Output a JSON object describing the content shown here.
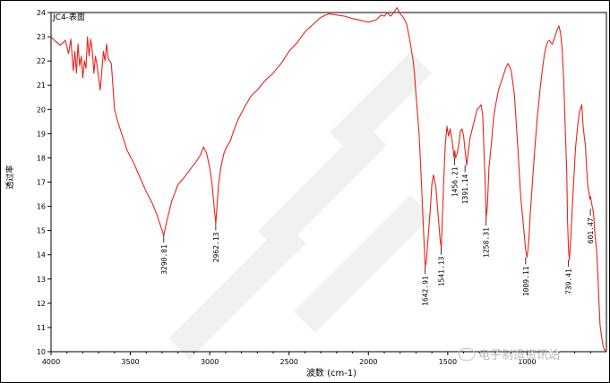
{
  "chart_data": {
    "type": "line",
    "title": "JC4-表面",
    "xlabel": "波数 (cm-1)",
    "ylabel": "透过率",
    "xlim": [
      4000,
      500
    ],
    "ylim": [
      10,
      24
    ],
    "x_ticks": [
      "4000",
      "3500",
      "3000",
      "2500",
      "2000",
      "1500",
      "1000"
    ],
    "y_ticks": [
      "10",
      "11",
      "12",
      "13",
      "14",
      "15",
      "16",
      "17",
      "18",
      "19",
      "20",
      "21",
      "22",
      "23",
      "24"
    ],
    "line_color": "#e8231a",
    "series": [
      {
        "x": [
          4000,
          3970,
          3940,
          3910,
          3890,
          3875,
          3860,
          3850,
          3840,
          3830,
          3820,
          3810,
          3800,
          3790,
          3780,
          3770,
          3760,
          3750,
          3740,
          3730,
          3720,
          3710,
          3700,
          3690,
          3680,
          3670,
          3660,
          3650,
          3640,
          3620,
          3600,
          3580,
          3550,
          3520,
          3480,
          3440,
          3400,
          3360,
          3330,
          3310,
          3290,
          3270,
          3240,
          3200,
          3160,
          3120,
          3090,
          3060,
          3040,
          3020,
          3000,
          2985,
          2970,
          2962,
          2955,
          2945,
          2930,
          2910,
          2890,
          2870,
          2850,
          2820,
          2780,
          2740,
          2700,
          2650,
          2600,
          2550,
          2500,
          2450,
          2400,
          2350,
          2300,
          2250,
          2200,
          2150,
          2100,
          2050,
          2000,
          1950,
          1920,
          1900,
          1880,
          1860,
          1840,
          1820,
          1800,
          1780,
          1760,
          1740,
          1720,
          1710,
          1700,
          1690,
          1680,
          1670,
          1660,
          1650,
          1642,
          1635,
          1625,
          1610,
          1600,
          1590,
          1575,
          1560,
          1548,
          1541,
          1535,
          1525,
          1515,
          1505,
          1495,
          1485,
          1470,
          1460,
          1456,
          1450,
          1440,
          1430,
          1420,
          1410,
          1400,
          1391,
          1380,
          1370,
          1360,
          1345,
          1330,
          1315,
          1300,
          1290,
          1280,
          1270,
          1262,
          1258,
          1250,
          1240,
          1225,
          1210,
          1195,
          1180,
          1165,
          1150,
          1135,
          1120,
          1100,
          1080,
          1060,
          1040,
          1020,
          1009,
          1000,
          990,
          980,
          965,
          950,
          935,
          920,
          905,
          890,
          880,
          870,
          860,
          850,
          840,
          830,
          820,
          810,
          800,
          790,
          780,
          770,
          760,
          750,
          745,
          739,
          733,
          725,
          710,
          695,
          680,
          670,
          660,
          655,
          648,
          640,
          632,
          626,
          620,
          615,
          610,
          605,
          600,
          595,
          590,
          585,
          580,
          575,
          570,
          565,
          560,
          555,
          550,
          545,
          540,
          530,
          520,
          510,
          500
        ],
        "y": [
          23.0,
          22.8,
          22.65,
          22.85,
          22.3,
          22.9,
          21.6,
          22.4,
          21.5,
          22.7,
          21.8,
          22.2,
          21.3,
          22.0,
          21.7,
          23.0,
          22.2,
          22.9,
          22.4,
          21.5,
          22.2,
          21.8,
          21.3,
          20.8,
          21.6,
          22.4,
          22.0,
          22.7,
          22.1,
          21.9,
          20.0,
          19.5,
          18.9,
          18.3,
          17.8,
          17.2,
          16.6,
          16.1,
          15.6,
          15.2,
          14.8,
          15.4,
          16.2,
          16.9,
          17.2,
          17.55,
          17.8,
          18.1,
          18.45,
          18.2,
          17.6,
          16.9,
          15.8,
          15.3,
          15.9,
          16.9,
          17.6,
          18.2,
          18.5,
          18.7,
          19.1,
          19.6,
          20.1,
          20.55,
          20.8,
          21.2,
          21.5,
          21.9,
          22.4,
          22.75,
          23.2,
          23.5,
          23.8,
          23.95,
          23.9,
          23.85,
          23.75,
          23.68,
          23.6,
          23.7,
          23.9,
          23.85,
          24.0,
          23.85,
          24.0,
          24.2,
          23.95,
          23.8,
          23.55,
          22.9,
          22.1,
          21.5,
          20.6,
          19.8,
          18.9,
          17.6,
          16.1,
          14.6,
          13.5,
          13.7,
          14.6,
          15.9,
          16.9,
          17.3,
          16.8,
          15.6,
          14.6,
          14.3,
          15.3,
          17.1,
          18.6,
          19.3,
          18.9,
          19.2,
          18.6,
          18.0,
          18.3,
          18.0,
          18.2,
          18.6,
          19.1,
          19.2,
          18.9,
          18.3,
          17.7,
          18.3,
          18.8,
          19.2,
          19.6,
          20.0,
          20.1,
          20.2,
          19.8,
          18.0,
          16.6,
          15.5,
          16.0,
          17.6,
          18.6,
          19.7,
          20.3,
          20.8,
          21.1,
          21.4,
          21.7,
          21.9,
          21.6,
          20.6,
          18.6,
          16.4,
          15.0,
          14.2,
          13.9,
          14.5,
          15.7,
          17.1,
          18.5,
          19.7,
          20.7,
          21.6,
          22.3,
          22.6,
          22.8,
          22.85,
          22.75,
          22.7,
          22.9,
          23.1,
          23.3,
          23.45,
          23.2,
          22.6,
          21.3,
          19.4,
          17.4,
          15.4,
          14.2,
          13.8,
          14.6,
          16.6,
          18.4,
          19.4,
          19.9,
          20.1,
          20.2,
          19.4,
          18.9,
          18.5,
          17.7,
          17.1,
          16.7,
          16.6,
          16.3,
          16.4,
          16.2,
          16.0,
          15.9,
          15.6,
          15.1,
          14.7,
          14.4,
          14.0,
          13.3,
          12.6,
          11.8,
          11.1,
          10.6,
          10.2,
          10.05,
          10.0
        ]
      }
    ],
    "annotations": [
      {
        "label": "3290.81",
        "x": 3290,
        "y": 14.8
      },
      {
        "label": "2962.13",
        "x": 2962,
        "y": 15.3
      },
      {
        "label": "1642.91",
        "x": 1642,
        "y": 13.5
      },
      {
        "label": "1541.13",
        "x": 1541,
        "y": 14.3
      },
      {
        "label": "1456.21",
        "x": 1456,
        "y": 18.0
      },
      {
        "label": "1391.14",
        "x": 1391,
        "y": 17.7
      },
      {
        "label": "1258.31",
        "x": 1258,
        "y": 15.5
      },
      {
        "label": "1009.11",
        "x": 1009,
        "y": 13.9
      },
      {
        "label": "739.41",
        "x": 739,
        "y": 13.8
      },
      {
        "label": "601.47",
        "x": 601,
        "y": 15.9
      }
    ]
  },
  "watermark": {
    "text": "电子制造资讯站",
    "icon": "wechat-icon"
  }
}
